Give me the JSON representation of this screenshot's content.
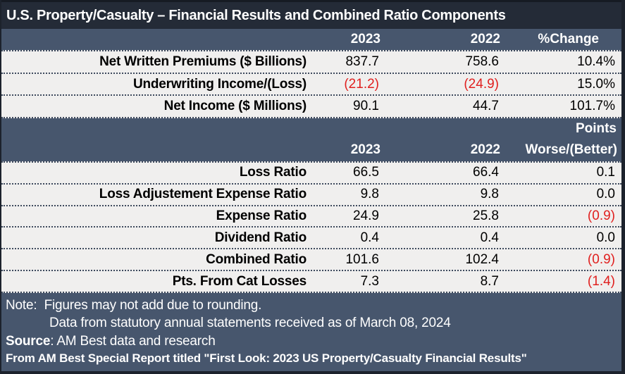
{
  "title": "U.S. Property/Casualty – Financial Results and Combined Ratio Components",
  "colors": {
    "title_navy": "#242b37",
    "band_slate": "#47566d",
    "row_background": "#f0efee",
    "negative_red": "#e0201f"
  },
  "financials": {
    "headers": {
      "y2023": "2023",
      "y2022": "2022",
      "change": "%Change"
    },
    "rows": [
      {
        "label": "Net Written Premiums ($ Billions)",
        "y2023": "837.7",
        "y2022": "758.6",
        "change": "10.4%",
        "y2023_negative": false,
        "y2022_negative": false,
        "change_negative": false
      },
      {
        "label": "Underwriting Income/(Loss)",
        "y2023": "(21.2)",
        "y2022": "(24.9)",
        "change": "15.0%",
        "y2023_negative": true,
        "y2022_negative": true,
        "change_negative": false
      },
      {
        "label": "Net Income ($ Millions)",
        "y2023": "90.1",
        "y2022": "44.7",
        "change": "101.7%",
        "y2023_negative": false,
        "y2022_negative": false,
        "change_negative": false
      }
    ]
  },
  "ratios": {
    "headers": {
      "points_line": "Points",
      "y2023": "2023",
      "y2022": "2022",
      "change": "Worse/(Better)"
    },
    "rows": [
      {
        "label": "Loss Ratio",
        "y2023": "66.5",
        "y2022": "66.4",
        "change": "0.1",
        "y2023_negative": false,
        "y2022_negative": false,
        "change_negative": false
      },
      {
        "label": "Loss Adjustement Expense Ratio",
        "y2023": "9.8",
        "y2022": "9.8",
        "change": "0.0",
        "y2023_negative": false,
        "y2022_negative": false,
        "change_negative": false
      },
      {
        "label": "Expense Ratio",
        "y2023": "24.9",
        "y2022": "25.8",
        "change": "(0.9)",
        "y2023_negative": false,
        "y2022_negative": false,
        "change_negative": true
      },
      {
        "label": "Dividend Ratio",
        "y2023": "0.4",
        "y2022": "0.4",
        "change": "0.0",
        "y2023_negative": false,
        "y2022_negative": false,
        "change_negative": false
      },
      {
        "label": "Combined Ratio",
        "y2023": "101.6",
        "y2022": "102.4",
        "change": "(0.9)",
        "y2023_negative": false,
        "y2022_negative": false,
        "change_negative": true
      },
      {
        "label": "Pts. From Cat Losses",
        "y2023": "7.3",
        "y2022": "8.7",
        "change": "(1.4)",
        "y2023_negative": false,
        "y2022_negative": false,
        "change_negative": true
      }
    ]
  },
  "footer": {
    "note_line1": "Note:  Figures may not add due to rounding.",
    "note_line2": "Data from statutory annual statements received as of March 08, 2024",
    "source_label": "Source",
    "source_text": ": AM Best data and research",
    "report_line": "From AM Best Special Report titled \"First Look: 2023 US Property/Casualty Financial Results\""
  }
}
